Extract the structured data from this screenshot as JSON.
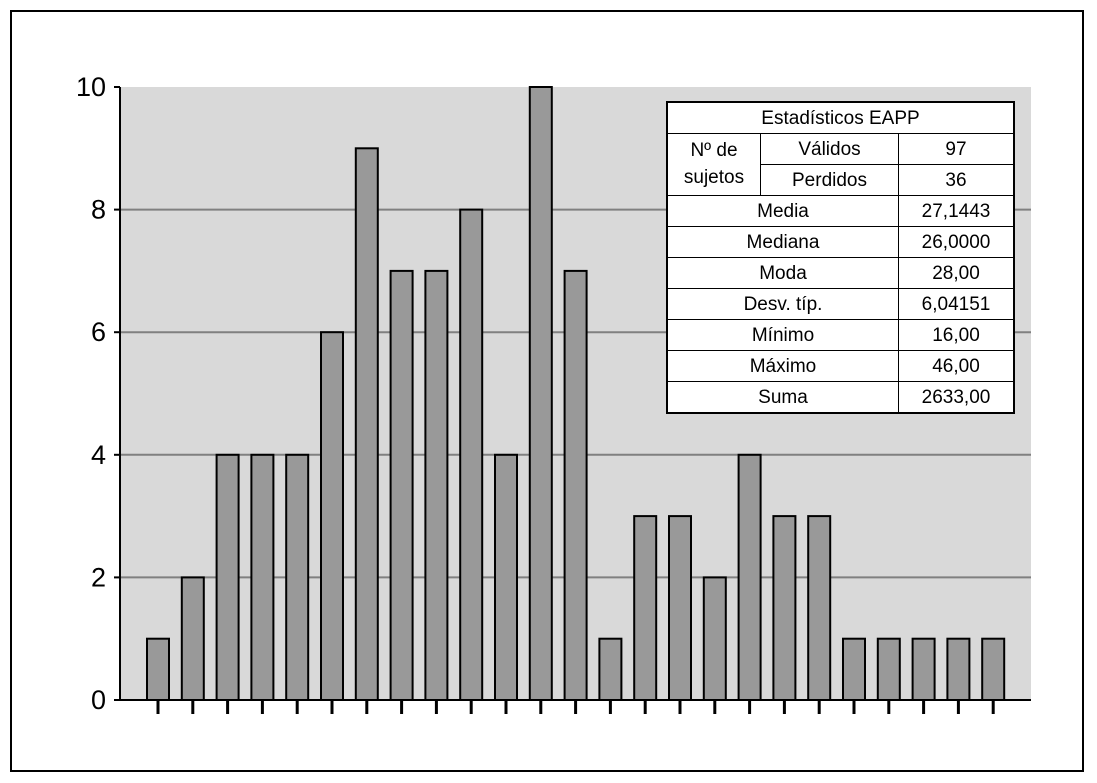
{
  "chart_data": {
    "type": "bar",
    "categories": [
      "",
      "",
      "",
      "",
      "",
      "",
      "",
      "",
      "",
      "",
      "",
      "",
      "",
      "",
      "",
      "",
      "",
      "",
      "",
      "",
      "",
      "",
      "",
      "",
      ""
    ],
    "values": [
      1,
      2,
      4,
      4,
      4,
      6,
      9,
      7,
      7,
      8,
      4,
      10,
      7,
      1,
      3,
      3,
      2,
      4,
      3,
      3,
      1,
      1,
      1,
      1,
      1
    ],
    "ylim": [
      0,
      10
    ],
    "yticks": [
      "0",
      "2",
      "4",
      "6",
      "8",
      "10"
    ],
    "grid": true,
    "colors": {
      "bar": "#999999",
      "plot_bg": "#d9d9d9",
      "grid": "#808080"
    }
  },
  "stats_table": {
    "title": "Estadísticos EAPP",
    "group_label": "Nº de sujetos",
    "rows": [
      {
        "label": "Válidos",
        "value": "97"
      },
      {
        "label": "Perdidos",
        "value": "36"
      },
      {
        "label": "Media",
        "value": "27,1443"
      },
      {
        "label": "Mediana",
        "value": "26,0000"
      },
      {
        "label": "Moda",
        "value": "28,00"
      },
      {
        "label": "Desv. típ.",
        "value": "6,04151"
      },
      {
        "label": "Mínimo",
        "value": "16,00"
      },
      {
        "label": "Máximo",
        "value": "46,00"
      },
      {
        "label": "Suma",
        "value": "2633,00"
      }
    ]
  }
}
